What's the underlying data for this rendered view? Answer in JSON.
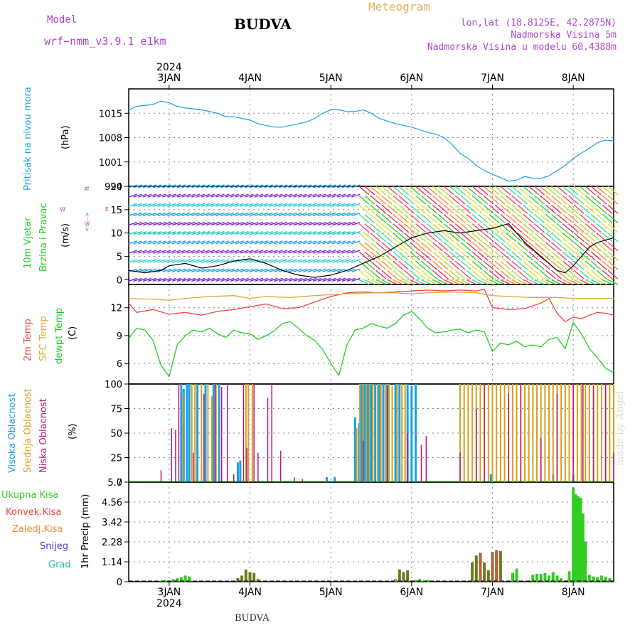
{
  "header": {
    "model_label": "Model",
    "model_name": "wrf−nmm_v3.9.1  e1km",
    "title": "BUDVA",
    "meteogram_label": "Meteogram",
    "lonlat": "lon,lat (18.8125E, 42.2875N)",
    "elevation": "Nadmorska Visina 5m",
    "model_elevation": "Nadmorska Visina u modelu 60.4388m"
  },
  "footer": {
    "location": "BUDVA",
    "credit": "made by Angel"
  },
  "colors": {
    "pressure": "#1aa0e8",
    "wind_speed": "#000000",
    "gust": "#e23a3a",
    "temp2m": "#e84848",
    "sfc_temp": "#e0a838",
    "dewpoint": "#22cc22",
    "cloud_high": "#1aa0e8",
    "cloud_mid": "#d4a020",
    "cloud_low": "#c0187a",
    "precip_total": "#33cc22",
    "precip_conv": "#ee4444",
    "precip_freezing": "#ff8833",
    "precip_snow": "#4444dd",
    "precip_grad": "#22bbaa",
    "precip_dark": "#6b7a20"
  },
  "time_axis": {
    "year_label": "2024",
    "day_labels": [
      "3JAN",
      "4JAN",
      "5JAN",
      "6JAN",
      "7JAN",
      "8JAN"
    ],
    "start_day": 2.5,
    "end_day": 8.5,
    "day_ticks": [
      3,
      4,
      5,
      6,
      7,
      8
    ]
  },
  "panels": {
    "pressure": {
      "label_main": "Pritisak na nivou mora",
      "unit": "(hPa)"
    },
    "wind": {
      "label_main": "10m Vjetar",
      "label_sub": "Brzina i Pravac",
      "unit": "(m/s)",
      "compass_w": "W",
      "compass_e": "E",
      "compass_n": "N",
      "compass_s": "S",
      "compass_arrows": "<--|-->"
    },
    "temperature": {
      "label_temp": "2m Temp",
      "label_sfc": "SFC Temp",
      "label_dew": "dewpt Temp",
      "unit": "(C)"
    },
    "cloud": {
      "label_high": "Visoka Oblacnost",
      "label_mid": "Srednja Oblacnost",
      "label_low": "Niska Oblacnost",
      "unit": "(%)"
    },
    "precip": {
      "label_total": "Ukupna Kisa",
      "label_conv": "Konvek.Kisa",
      "label_freezing": "Zaledj.Kisa",
      "label_snow": "Snijeg",
      "label_grad": "Grad",
      "unit": "1hr Precip (mm)"
    }
  },
  "chart_data": [
    {
      "type": "line",
      "title": "",
      "ylabel": "Pritisak na nivou mora (hPa)",
      "ylim": [
        994,
        1022
      ],
      "yticks": [
        994,
        1001,
        1008,
        1015
      ],
      "ytick_labels": [
        "994",
        "1001",
        "1008",
        "1015"
      ],
      "series": [
        {
          "name": "Pritisak na nivou mora",
          "x": [
            2.5,
            2.6,
            2.8,
            2.9,
            3.0,
            3.1,
            3.2,
            3.4,
            3.6,
            3.7,
            3.8,
            4.0,
            4.1,
            4.2,
            4.3,
            4.4,
            4.6,
            4.7,
            4.8,
            4.9,
            5.0,
            5.1,
            5.2,
            5.3,
            5.4,
            5.5,
            5.6,
            5.8,
            6.0,
            6.2,
            6.3,
            6.4,
            6.5,
            6.6,
            6.7,
            6.8,
            6.9,
            7.0,
            7.1,
            7.2,
            7.3,
            7.4,
            7.5,
            7.6,
            7.7,
            7.8,
            7.9,
            8.0,
            8.1,
            8.2,
            8.3,
            8.4,
            8.5
          ],
          "y": [
            1016,
            1017,
            1017.5,
            1018.5,
            1018,
            1017,
            1016.5,
            1016,
            1015,
            1014,
            1014,
            1013,
            1012,
            1011.5,
            1011,
            1011,
            1012,
            1012.5,
            1013.5,
            1015,
            1016,
            1016,
            1015.5,
            1015.5,
            1016,
            1015,
            1013.5,
            1012,
            1011,
            1009.5,
            1009,
            1008,
            1006,
            1003.5,
            1002,
            1000,
            998.5,
            997.5,
            996.5,
            995.5,
            995.8,
            996.8,
            996.3,
            996.3,
            997,
            998.5,
            1000,
            1002,
            1003.5,
            1005,
            1006.5,
            1007.3,
            1007
          ]
        }
      ]
    },
    {
      "type": "line",
      "title": "",
      "ylabel": "10m Vjetar Brzina i Pravac (m/s)",
      "ylim": [
        -1,
        20
      ],
      "yticks": [
        0,
        5,
        10,
        15,
        20
      ],
      "ytick_labels": [
        "0",
        "5",
        "10",
        "15",
        "20"
      ],
      "series": [
        {
          "name": "",
          "x": [
            2.5,
            2.7,
            2.9,
            3.0,
            3.2,
            3.4,
            3.6,
            3.8,
            4.0,
            4.2,
            4.4,
            4.6,
            4.8,
            5.0,
            5.2,
            5.4,
            5.6,
            5.8,
            6.0,
            6.2,
            6.4,
            6.6,
            6.8,
            7.0,
            7.2,
            7.4,
            7.6,
            7.7,
            7.8,
            7.9,
            8.0,
            8.1,
            8.2,
            8.3,
            8.4,
            8.5
          ],
          "y": [
            2,
            1.5,
            2,
            3,
            3.5,
            2.5,
            3,
            4,
            4.5,
            3.5,
            2,
            1,
            0.5,
            1,
            2,
            3.5,
            5,
            7,
            9,
            10,
            10.5,
            10,
            10.5,
            11,
            12,
            8,
            5,
            3.5,
            2,
            1.5,
            3,
            5,
            7,
            8,
            8.5,
            9
          ]
        }
      ]
    },
    {
      "type": "line",
      "title": "",
      "ylabel": "2m Temp / SFC Temp / dewpt Temp (C)",
      "ylim": [
        3.8,
        14.5
      ],
      "yticks": [
        6,
        9,
        12
      ],
      "ytick_labels": [
        "6",
        "9",
        "12"
      ],
      "series": [
        {
          "name": "2m Temp",
          "x": [
            2.5,
            2.6,
            2.8,
            3.0,
            3.2,
            3.4,
            3.6,
            3.8,
            4.0,
            4.2,
            4.4,
            4.6,
            4.8,
            5.0,
            5.2,
            5.4,
            5.6,
            5.8,
            6.0,
            6.2,
            6.4,
            6.6,
            6.8,
            6.9,
            7.0,
            7.2,
            7.4,
            7.6,
            7.7,
            7.8,
            7.9,
            8.0,
            8.1,
            8.2,
            8.3,
            8.4,
            8.5
          ],
          "y": [
            12.5,
            11.5,
            11.8,
            11.3,
            11.5,
            11.2,
            11.6,
            11.8,
            12.1,
            12.4,
            11.9,
            12.0,
            12.6,
            13.2,
            13.6,
            13.7,
            13.6,
            13.7,
            13.8,
            13.9,
            13.8,
            13.9,
            13.8,
            14.0,
            12.0,
            11.8,
            11.9,
            12.5,
            13.0,
            11.4,
            10.5,
            11.0,
            10.8,
            11.2,
            11.5,
            11.4,
            11.2
          ]
        },
        {
          "name": "SFC Temp",
          "x": [
            2.5,
            2.8,
            3.0,
            3.2,
            3.5,
            3.8,
            4.0,
            4.2,
            4.5,
            4.8,
            5.0,
            5.2,
            5.5,
            5.8,
            6.0,
            6.2,
            6.5,
            6.8,
            7.0,
            7.2,
            7.5,
            7.8,
            8.0,
            8.2,
            8.5
          ],
          "y": [
            13.0,
            12.9,
            12.8,
            13.0,
            13.2,
            13.3,
            13.0,
            13.2,
            13.1,
            13.3,
            13.4,
            13.5,
            13.6,
            13.6,
            13.5,
            13.6,
            13.7,
            13.6,
            13.3,
            13.2,
            13.1,
            13.1,
            13.0,
            13.0,
            13.0
          ]
        },
        {
          "name": "dewpt Temp",
          "x": [
            2.5,
            2.6,
            2.7,
            2.8,
            2.9,
            3.0,
            3.1,
            3.2,
            3.3,
            3.4,
            3.5,
            3.6,
            3.7,
            3.8,
            3.9,
            4.0,
            4.1,
            4.2,
            4.3,
            4.4,
            4.5,
            4.6,
            4.7,
            4.8,
            4.9,
            5.0,
            5.1,
            5.2,
            5.3,
            5.4,
            5.5,
            5.6,
            5.7,
            5.8,
            5.9,
            6.0,
            6.1,
            6.2,
            6.3,
            6.4,
            6.5,
            6.6,
            6.7,
            6.8,
            6.9,
            7.0,
            7.1,
            7.2,
            7.3,
            7.4,
            7.5,
            7.6,
            7.7,
            7.8,
            7.9,
            8.0,
            8.1,
            8.2,
            8.3,
            8.4,
            8.5
          ],
          "y": [
            8.7,
            9.8,
            9.6,
            8.5,
            5.8,
            4.6,
            8.0,
            9.0,
            9.6,
            9.4,
            9.8,
            9.2,
            8.8,
            9.6,
            9.3,
            9.2,
            8.6,
            9.0,
            9.5,
            10.3,
            10.5,
            9.8,
            9.0,
            8.5,
            7.5,
            6.0,
            4.7,
            8.0,
            9.6,
            9.8,
            10.3,
            10.0,
            9.8,
            10.3,
            11.2,
            11.6,
            10.8,
            9.8,
            9.3,
            9.4,
            9.6,
            9.7,
            9.3,
            9.6,
            9.4,
            7.3,
            8.2,
            8.0,
            8.4,
            7.8,
            8.0,
            7.8,
            8.6,
            8.8,
            7.6,
            10.4,
            9.2,
            7.6,
            6.6,
            5.5,
            5.0
          ]
        }
      ]
    },
    {
      "type": "bar",
      "title": "",
      "ylabel": "Visoka / Srednja / Niska Oblacnost (%)",
      "ylim": [
        0,
        100
      ],
      "yticks": [
        0,
        25,
        50,
        75,
        100
      ],
      "ytick_labels": [
        "0",
        "25",
        "50",
        "75",
        "100"
      ],
      "series": [
        {
          "name": "Visoka Oblacnost",
          "x": [
            3.15,
            3.18,
            3.22,
            3.25,
            3.35,
            3.45,
            3.55,
            3.62,
            3.85,
            3.88,
            4.95,
            5.05,
            5.3,
            5.35,
            5.38,
            5.42,
            5.46,
            5.5,
            5.55,
            5.6,
            5.65,
            5.7,
            5.8,
            5.85,
            5.95,
            6.0,
            6.05,
            6.98,
            7.75,
            8.0
          ],
          "y": [
            100,
            95,
            100,
            100,
            100,
            100,
            100,
            100,
            20,
            22,
            5,
            5,
            66,
            60,
            100,
            100,
            100,
            100,
            100,
            100,
            100,
            100,
            100,
            100,
            100,
            98,
            100,
            8,
            8,
            8
          ]
        },
        {
          "name": "Srednja Oblacnost",
          "x": [
            3.17,
            3.28,
            3.32,
            3.4,
            3.48,
            3.53,
            3.58,
            3.95,
            3.98,
            4.03,
            5.32,
            5.36,
            5.4,
            5.44,
            5.48,
            5.52,
            5.58,
            5.62,
            5.68,
            5.72,
            5.76,
            5.82,
            5.88,
            5.92,
            6.6,
            6.65,
            6.7,
            6.75,
            6.8,
            6.85,
            6.9,
            6.95,
            7.0,
            7.05,
            7.1,
            7.15,
            7.2,
            7.25,
            7.3,
            7.35,
            7.4,
            7.45,
            7.5,
            7.55,
            7.6,
            7.65,
            7.7,
            7.75,
            7.8,
            7.85,
            7.9,
            7.95,
            8.0,
            8.05,
            8.1,
            8.15,
            8.2,
            8.25,
            8.3,
            8.35,
            8.4,
            8.45,
            8.5
          ],
          "y": [
            90,
            100,
            100,
            100,
            100,
            88,
            100,
            100,
            100,
            100,
            55,
            100,
            100,
            100,
            100,
            100,
            100,
            100,
            100,
            100,
            98,
            100,
            100,
            100,
            100,
            100,
            100,
            100,
            100,
            100,
            100,
            100,
            100,
            100,
            100,
            100,
            100,
            100,
            100,
            100,
            100,
            100,
            100,
            100,
            100,
            100,
            100,
            100,
            100,
            100,
            100,
            100,
            100,
            100,
            100,
            100,
            100,
            100,
            100,
            100,
            100,
            100,
            100
          ]
        },
        {
          "name": "Niska Oblacnost",
          "x": [
            2.9,
            3.03,
            3.08,
            3.12,
            3.3,
            3.43,
            3.57,
            3.65,
            3.72,
            3.8,
            3.92,
            3.96,
            4.05,
            4.1,
            4.22,
            4.27,
            4.38,
            4.55,
            4.65,
            5.4,
            5.7,
            5.95,
            6.12,
            6.18,
            6.6,
            6.8,
            6.9,
            7.2,
            7.35,
            7.6,
            7.8,
            8.0,
            8.12,
            8.25,
            8.4,
            8.5
          ],
          "y": [
            12,
            55,
            53,
            100,
            30,
            90,
            100,
            97,
            100,
            8,
            100,
            35,
            100,
            30,
            86,
            100,
            32,
            5,
            3,
            42,
            98,
            50,
            38,
            47,
            30,
            75,
            100,
            90,
            100,
            45,
            90,
            100,
            100,
            98,
            100,
            30
          ]
        }
      ]
    },
    {
      "type": "bar",
      "title": "",
      "ylabel": "1hr Precip (mm)",
      "ylim": [
        0,
        5.7
      ],
      "yticks": [
        0,
        1.14,
        2.28,
        3.42,
        4.56,
        5.7
      ],
      "ytick_labels": [
        "0",
        "1.14",
        "2.28",
        "3.42",
        "4.56",
        "5.7"
      ],
      "series": [
        {
          "name": "Ukupna Kisa",
          "x": [
            2.9,
            2.95,
            3.05,
            3.1,
            3.15,
            3.2,
            3.25,
            3.85,
            3.9,
            3.95,
            4.0,
            4.05,
            4.1,
            5.8,
            5.85,
            5.9,
            5.95,
            6.05,
            6.1,
            6.15,
            6.2,
            6.75,
            6.8,
            6.85,
            6.9,
            6.95,
            7.0,
            7.05,
            7.1,
            7.25,
            7.3,
            7.5,
            7.55,
            7.6,
            7.65,
            7.7,
            7.75,
            7.8,
            7.85,
            7.95,
            8.0,
            8.03,
            8.06,
            8.09,
            8.12,
            8.15,
            8.2,
            8.25,
            8.3,
            8.35,
            8.4,
            8.45
          ],
          "y": [
            0.05,
            0.08,
            0.15,
            0.2,
            0.25,
            0.35,
            0.3,
            0.2,
            0.35,
            0.7,
            0.55,
            0.5,
            0.15,
            0.15,
            0.7,
            0.55,
            0.65,
            0.1,
            0.15,
            0.05,
            0.1,
            1.1,
            1.5,
            1.65,
            1.1,
            0.65,
            1.7,
            1.8,
            1.75,
            0.5,
            0.75,
            0.4,
            0.45,
            0.45,
            0.5,
            0.35,
            0.55,
            0.35,
            0.2,
            0.6,
            5.4,
            5.0,
            4.9,
            4.8,
            3.9,
            2.3,
            0.4,
            0.3,
            0.25,
            0.35,
            0.3,
            0.2
          ]
        },
        {
          "name": "Konvek.Kisa",
          "x": [
            6.85,
            7.0,
            7.05
          ],
          "y": [
            1.6,
            1.65,
            1.7
          ]
        }
      ]
    }
  ]
}
